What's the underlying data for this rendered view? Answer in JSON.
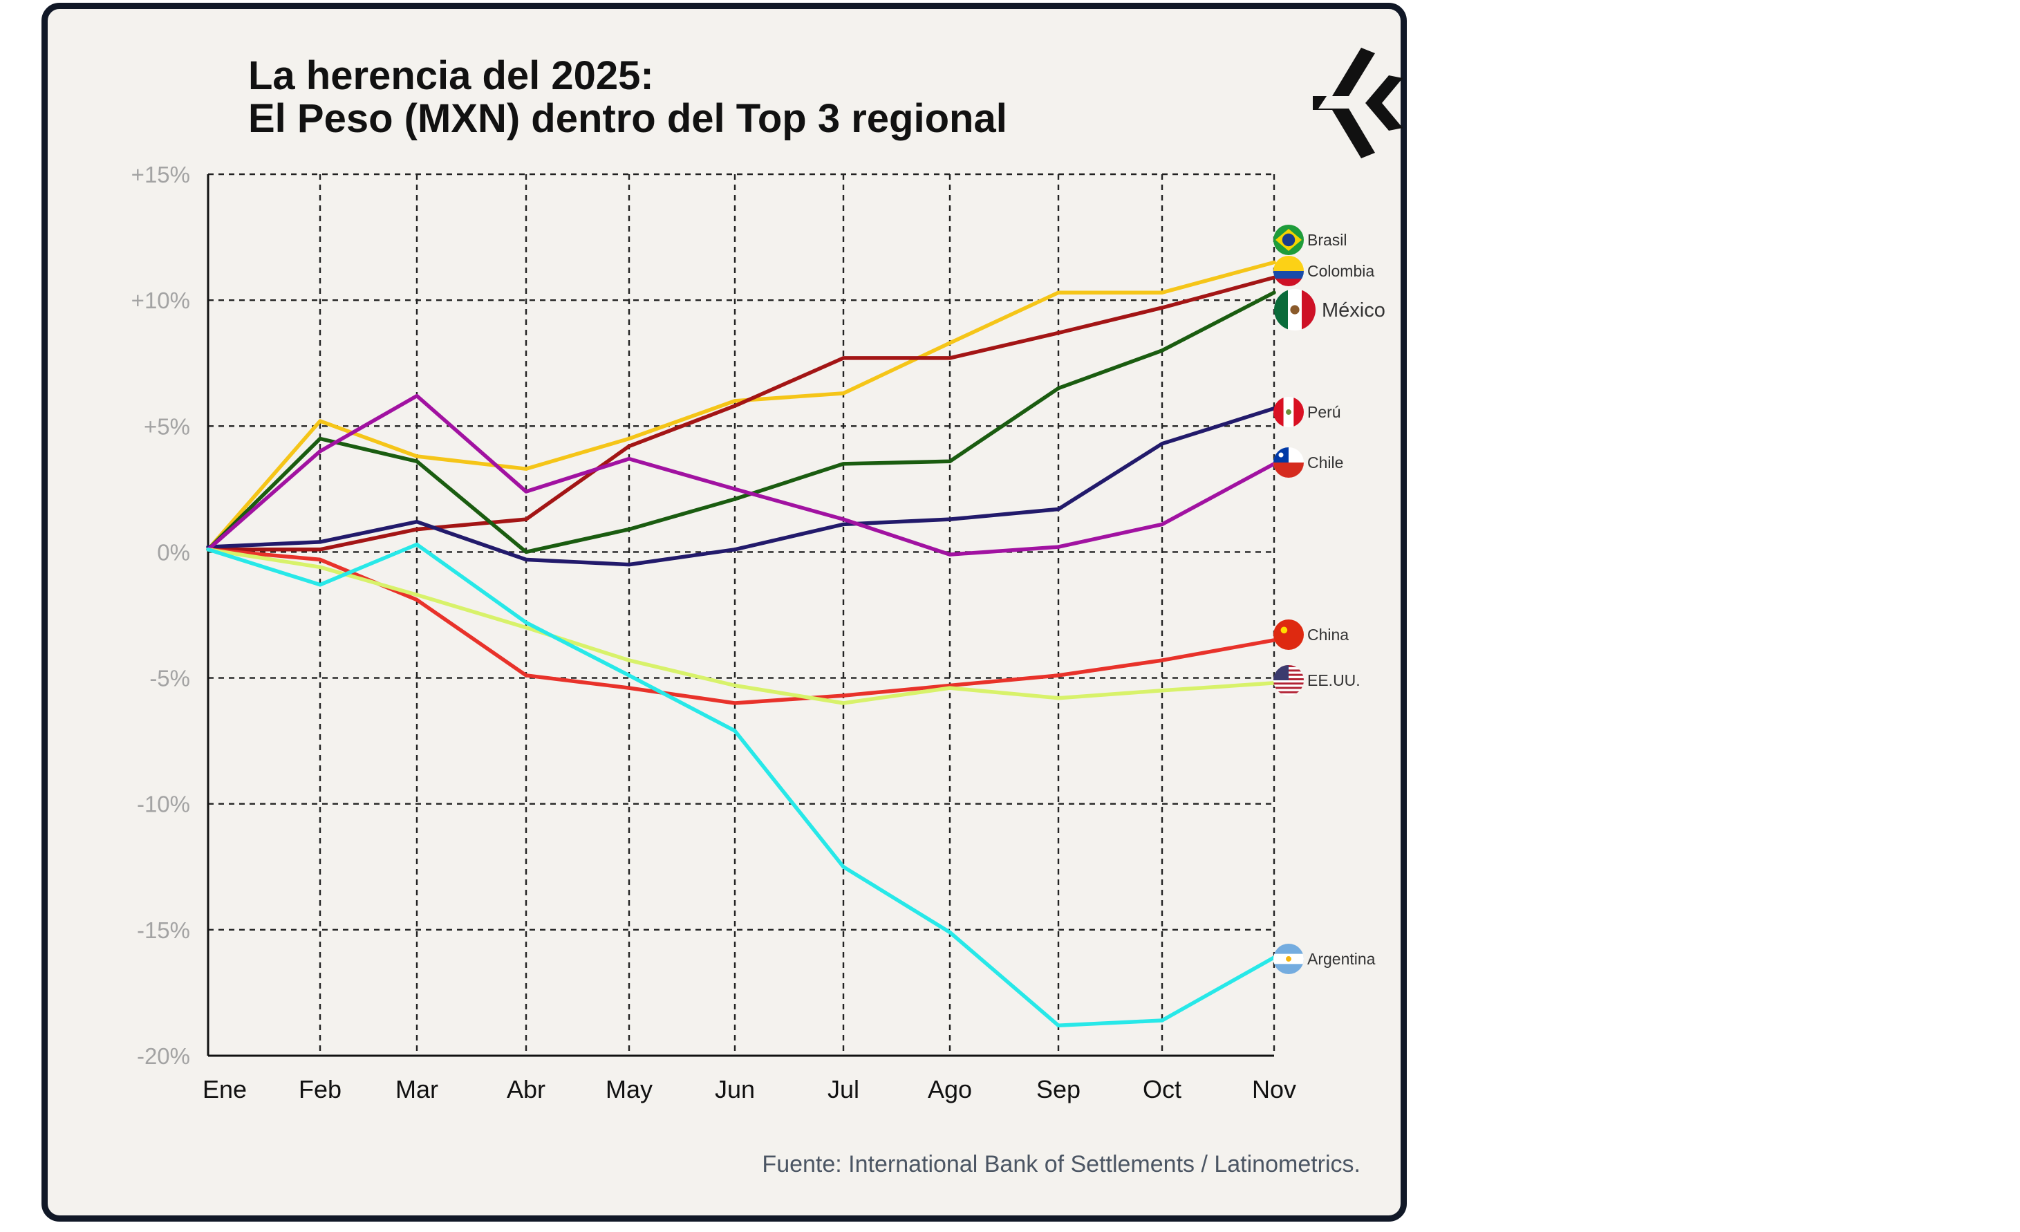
{
  "header": {
    "title_line1": "La herencia del 2025:",
    "title_line2": "El Peso (MXN) dentro del Top 3 regional"
  },
  "footer": {
    "source": "Fuente: International Bank of Settlements / Latinometrics."
  },
  "logo": {
    "icon": "latinometrics-logo-icon",
    "color": "#111111"
  },
  "colors": {
    "background": "#f4f2ee",
    "border": "#111827",
    "grid": "#222222",
    "tick": "#a3a3a3"
  },
  "chart_data": {
    "type": "line",
    "title": "La herencia del 2025: El Peso (MXN) dentro del Top 3 regional",
    "xlabel": "",
    "ylabel": "",
    "x": [
      "Ene",
      "Feb",
      "Mar",
      "Abr",
      "May",
      "Jun",
      "Jul",
      "Ago",
      "Sep",
      "Oct",
      "Nov"
    ],
    "ylim": [
      -20,
      15
    ],
    "yticks": [
      15,
      10,
      5,
      0,
      -5,
      -10,
      -15,
      -20
    ],
    "ytick_labels": [
      "+15%",
      "+10%",
      "+5%",
      "0%",
      "-5%",
      "-10%",
      "-15%",
      "-20%"
    ],
    "grid": true,
    "series": [
      {
        "name": "Brasil",
        "color": "#f5c518",
        "values": [
          0.1,
          5.2,
          3.8,
          3.3,
          4.5,
          6.0,
          6.3,
          8.3,
          10.3,
          10.3,
          11.5
        ]
      },
      {
        "name": "Colombia",
        "color": "#a31515",
        "values": [
          0.1,
          0.1,
          0.9,
          1.3,
          4.2,
          5.8,
          7.7,
          7.7,
          8.7,
          9.7,
          10.9
        ]
      },
      {
        "name": "México",
        "color": "#1a5c10",
        "values": [
          0.1,
          4.5,
          3.6,
          0.0,
          0.9,
          2.1,
          3.5,
          3.6,
          6.5,
          8.0,
          10.3
        ],
        "highlight": true
      },
      {
        "name": "Perú",
        "color": "#221a6b",
        "values": [
          0.2,
          0.4,
          1.2,
          -0.3,
          -0.5,
          0.1,
          1.1,
          1.3,
          1.7,
          4.3,
          5.7
        ]
      },
      {
        "name": "Chile",
        "color": "#a112a1",
        "values": [
          0.1,
          4.0,
          6.2,
          2.4,
          3.7,
          2.5,
          1.3,
          -0.1,
          0.2,
          1.1,
          3.5
        ]
      },
      {
        "name": "China",
        "color": "#e8322a",
        "values": [
          0.1,
          -0.3,
          -1.9,
          -4.9,
          -5.4,
          -6.0,
          -5.7,
          -5.3,
          -4.9,
          -4.3,
          -3.5
        ]
      },
      {
        "name": "EE.UU.",
        "color": "#d8f26a",
        "values": [
          0.1,
          -0.6,
          -1.7,
          -3.0,
          -4.3,
          -5.3,
          -6.0,
          -5.4,
          -5.8,
          -5.5,
          -5.2
        ]
      },
      {
        "name": "Argentina",
        "color": "#27e8e8",
        "values": [
          0.1,
          -1.3,
          0.3,
          -2.8,
          -4.9,
          -7.1,
          -12.5,
          -15.1,
          -18.8,
          -18.6,
          -16.1
        ]
      }
    ]
  }
}
